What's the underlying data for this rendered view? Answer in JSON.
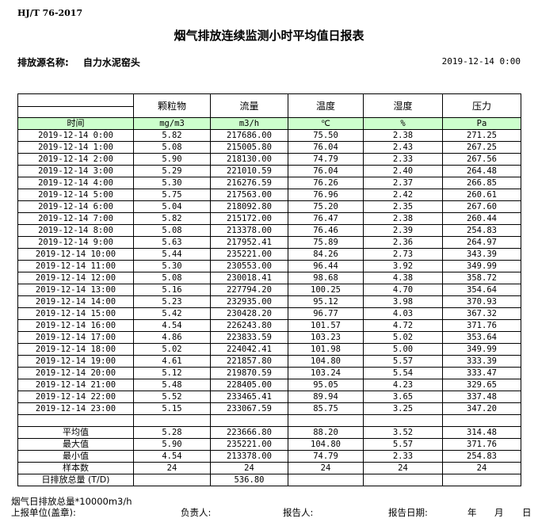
{
  "standard": "HJ/T  76-2017",
  "title": "烟气排放连续监测小时平均值日报表",
  "source_label": "排放源名称:",
  "source_name": "自力水泥窑头",
  "report_datetime": "2019-12-14 0:00",
  "table": {
    "headers": [
      "颗粒物",
      "流量",
      "温度",
      "湿度",
      "压力"
    ],
    "time_label": "时间",
    "units": [
      "mg/m3",
      "m3/h",
      "℃",
      "%",
      "Pa"
    ],
    "rows": [
      [
        "2019-12-14 0:00",
        "5.82",
        "217686.00",
        "75.50",
        "2.38",
        "271.25"
      ],
      [
        "2019-12-14 1:00",
        "5.08",
        "215005.80",
        "76.04",
        "2.43",
        "267.25"
      ],
      [
        "2019-12-14 2:00",
        "5.90",
        "218130.00",
        "74.79",
        "2.33",
        "267.56"
      ],
      [
        "2019-12-14 3:00",
        "5.29",
        "221010.59",
        "76.04",
        "2.40",
        "264.48"
      ],
      [
        "2019-12-14 4:00",
        "5.30",
        "216276.59",
        "76.26",
        "2.37",
        "266.85"
      ],
      [
        "2019-12-14 5:00",
        "5.75",
        "217563.00",
        "76.96",
        "2.42",
        "260.61"
      ],
      [
        "2019-12-14 6:00",
        "5.04",
        "218092.80",
        "75.20",
        "2.35",
        "267.60"
      ],
      [
        "2019-12-14 7:00",
        "5.82",
        "215172.00",
        "76.47",
        "2.38",
        "260.44"
      ],
      [
        "2019-12-14 8:00",
        "5.08",
        "213378.00",
        "76.46",
        "2.39",
        "254.83"
      ],
      [
        "2019-12-14 9:00",
        "5.63",
        "217952.41",
        "75.89",
        "2.36",
        "264.97"
      ],
      [
        "2019-12-14 10:00",
        "5.44",
        "235221.00",
        "84.26",
        "2.73",
        "343.39"
      ],
      [
        "2019-12-14 11:00",
        "5.30",
        "230553.00",
        "96.44",
        "3.92",
        "349.99"
      ],
      [
        "2019-12-14 12:00",
        "5.08",
        "230018.41",
        "98.68",
        "4.38",
        "358.72"
      ],
      [
        "2019-12-14 13:00",
        "5.16",
        "227794.20",
        "100.25",
        "4.70",
        "354.64"
      ],
      [
        "2019-12-14 14:00",
        "5.23",
        "232935.00",
        "95.12",
        "3.98",
        "370.93"
      ],
      [
        "2019-12-14 15:00",
        "5.42",
        "230428.20",
        "96.77",
        "4.03",
        "367.32"
      ],
      [
        "2019-12-14 16:00",
        "4.54",
        "226243.80",
        "101.57",
        "4.72",
        "371.76"
      ],
      [
        "2019-12-14 17:00",
        "4.86",
        "223833.59",
        "103.23",
        "5.02",
        "353.64"
      ],
      [
        "2019-12-14 18:00",
        "5.02",
        "224042.41",
        "101.98",
        "5.00",
        "349.99"
      ],
      [
        "2019-12-14 19:00",
        "4.61",
        "221857.80",
        "104.80",
        "5.57",
        "333.39"
      ],
      [
        "2019-12-14 20:00",
        "5.12",
        "219870.59",
        "103.24",
        "5.54",
        "333.47"
      ],
      [
        "2019-12-14 21:00",
        "5.48",
        "228405.00",
        "95.05",
        "4.23",
        "329.65"
      ],
      [
        "2019-12-14 22:00",
        "5.52",
        "233465.41",
        "89.94",
        "3.65",
        "337.48"
      ],
      [
        "2019-12-14 23:00",
        "5.15",
        "233067.59",
        "85.75",
        "3.25",
        "347.20"
      ]
    ],
    "summary": [
      [
        "平均值",
        "5.28",
        "223666.80",
        "88.20",
        "3.52",
        "314.48"
      ],
      [
        "最大值",
        "5.90",
        "235221.00",
        "104.80",
        "5.57",
        "371.76"
      ],
      [
        "最小值",
        "4.54",
        "213378.00",
        "74.79",
        "2.33",
        "254.83"
      ],
      [
        "样本数",
        "24",
        "24",
        "24",
        "24",
        "24"
      ],
      [
        "日排放总量 (T/D)",
        "",
        "536.80",
        "",
        "",
        ""
      ]
    ]
  },
  "footer": {
    "note": "烟气日排放总量*10000m3/h",
    "unit_label": "上报单位(盖章):",
    "responsible_label": "负责人:",
    "reporter_label": "报告人:",
    "date_label": "报告日期:",
    "year": "年",
    "month": "月",
    "day": "日"
  }
}
